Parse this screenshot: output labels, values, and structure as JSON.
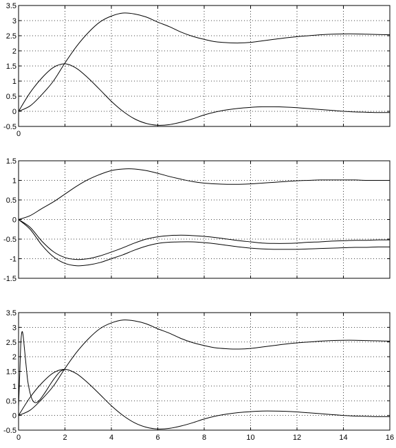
{
  "chart_data": [
    {
      "type": "line",
      "title": "",
      "xlabel": "",
      "ylabel": "",
      "xlim": [
        0,
        16
      ],
      "ylim": [
        -0.5,
        3.5
      ],
      "xticks": [
        0
      ],
      "xtick_labels": [
        "0"
      ],
      "yticks": [
        -0.5,
        0,
        0.5,
        1,
        1.5,
        2,
        2.5,
        3,
        3.5
      ],
      "ytick_labels": [
        "-0.5",
        "0",
        "0.5",
        "1",
        "1.5",
        "2",
        "2.5",
        "3",
        "3.5"
      ],
      "grid": true,
      "series": [
        {
          "x": [
            0,
            0.5,
            1,
            1.5,
            2,
            2.5,
            3,
            3.5,
            4,
            4.5,
            5,
            5.5,
            6,
            6.5,
            7,
            7.5,
            8,
            8.5,
            9,
            9.5,
            10,
            10.5,
            11,
            11.5,
            12,
            12.5,
            13,
            13.5,
            14,
            14.5,
            15,
            15.5,
            16
          ],
          "values": [
            0,
            0.18,
            0.55,
            1.0,
            1.6,
            2.15,
            2.6,
            2.95,
            3.15,
            3.25,
            3.22,
            3.12,
            2.95,
            2.8,
            2.62,
            2.48,
            2.38,
            2.3,
            2.27,
            2.26,
            2.28,
            2.33,
            2.38,
            2.43,
            2.47,
            2.5,
            2.53,
            2.55,
            2.56,
            2.56,
            2.55,
            2.54,
            2.53
          ]
        },
        {
          "x": [
            0,
            0.5,
            1,
            1.5,
            2,
            2.5,
            3,
            3.5,
            4,
            4.5,
            5,
            5.5,
            6,
            6.5,
            7,
            7.5,
            8,
            8.5,
            9,
            9.5,
            10,
            10.5,
            11,
            11.5,
            12,
            12.5,
            13,
            13.5,
            14,
            14.5,
            15,
            15.5,
            16
          ],
          "values": [
            0,
            0.62,
            1.1,
            1.45,
            1.57,
            1.42,
            1.1,
            0.72,
            0.33,
            0.0,
            -0.25,
            -0.4,
            -0.46,
            -0.44,
            -0.36,
            -0.25,
            -0.12,
            -0.02,
            0.05,
            0.1,
            0.13,
            0.15,
            0.15,
            0.14,
            0.12,
            0.09,
            0.06,
            0.03,
            0.0,
            -0.02,
            -0.03,
            -0.04,
            -0.04
          ]
        }
      ]
    },
    {
      "type": "line",
      "title": "",
      "xlabel": "",
      "ylabel": "",
      "xlim": [
        0,
        16
      ],
      "ylim": [
        -1.5,
        1.5
      ],
      "xticks": [],
      "xtick_labels": [],
      "yticks": [
        -1.5,
        -1,
        -0.5,
        0,
        0.5,
        1,
        1.5
      ],
      "ytick_labels": [
        "-1.5",
        "-1",
        "-0.5",
        "0",
        "0.5",
        "1",
        "1.5"
      ],
      "grid": true,
      "series": [
        {
          "x": [
            0,
            0.5,
            1,
            1.5,
            2,
            2.5,
            3,
            3.5,
            4,
            4.5,
            5,
            5.5,
            6,
            6.5,
            7,
            7.5,
            8,
            8.5,
            9,
            9.5,
            10,
            10.5,
            11,
            11.5,
            12,
            12.5,
            13,
            13.5,
            14,
            14.5,
            15,
            15.5,
            16
          ],
          "values": [
            0,
            0.1,
            0.28,
            0.45,
            0.65,
            0.85,
            1.02,
            1.15,
            1.25,
            1.29,
            1.29,
            1.25,
            1.18,
            1.1,
            1.03,
            0.97,
            0.93,
            0.91,
            0.9,
            0.9,
            0.91,
            0.93,
            0.95,
            0.97,
            0.99,
            1.0,
            1.01,
            1.01,
            1.01,
            1.01,
            1.0,
            1.0,
            1.0
          ]
        },
        {
          "x": [
            0,
            0.5,
            1,
            1.5,
            2,
            2.5,
            3,
            3.5,
            4,
            4.5,
            5,
            5.5,
            6,
            6.5,
            7,
            7.5,
            8,
            8.5,
            9,
            9.5,
            10,
            10.5,
            11,
            11.5,
            12,
            12.5,
            13,
            13.5,
            14,
            14.5,
            15,
            15.5,
            16
          ],
          "values": [
            0,
            -0.2,
            -0.55,
            -0.82,
            -0.97,
            -1.02,
            -1.0,
            -0.93,
            -0.83,
            -0.72,
            -0.6,
            -0.5,
            -0.44,
            -0.41,
            -0.4,
            -0.41,
            -0.43,
            -0.46,
            -0.5,
            -0.54,
            -0.57,
            -0.6,
            -0.61,
            -0.61,
            -0.6,
            -0.58,
            -0.57,
            -0.55,
            -0.54,
            -0.53,
            -0.53,
            -0.52,
            -0.52
          ]
        },
        {
          "x": [
            0,
            0.5,
            1,
            1.5,
            2,
            2.5,
            3,
            3.5,
            4,
            4.5,
            5,
            5.5,
            6,
            6.5,
            7,
            7.5,
            8,
            8.5,
            9,
            9.5,
            10,
            10.5,
            11,
            11.5,
            12,
            12.5,
            13,
            13.5,
            14,
            14.5,
            15,
            15.5,
            16
          ],
          "values": [
            0,
            -0.25,
            -0.65,
            -0.95,
            -1.12,
            -1.18,
            -1.16,
            -1.1,
            -1.0,
            -0.9,
            -0.78,
            -0.68,
            -0.61,
            -0.58,
            -0.57,
            -0.57,
            -0.59,
            -0.62,
            -0.66,
            -0.7,
            -0.73,
            -0.75,
            -0.76,
            -0.76,
            -0.76,
            -0.75,
            -0.74,
            -0.73,
            -0.72,
            -0.71,
            -0.71,
            -0.7,
            -0.7
          ]
        }
      ]
    },
    {
      "type": "line",
      "title": "",
      "xlabel": "",
      "ylabel": "",
      "xlim": [
        0,
        16
      ],
      "ylim": [
        -0.5,
        3.5
      ],
      "xticks": [
        0,
        2,
        4,
        6,
        8,
        10,
        12,
        14,
        16
      ],
      "xtick_labels": [
        "0",
        "2",
        "4",
        "6",
        "8",
        "10",
        "12",
        "14",
        "16"
      ],
      "yticks": [
        -0.5,
        0,
        0.5,
        1,
        1.5,
        2,
        2.5,
        3,
        3.5
      ],
      "ytick_labels": [
        "-0.5",
        "0",
        "0.5",
        "1",
        "1.5",
        "2",
        "2.5",
        "3",
        "3.5"
      ],
      "grid": true,
      "series": [
        {
          "x": [
            0,
            0.5,
            1,
            1.5,
            2,
            2.5,
            3,
            3.5,
            4,
            4.5,
            5,
            5.5,
            6,
            6.5,
            7,
            7.5,
            8,
            8.5,
            9,
            9.5,
            10,
            10.5,
            11,
            11.5,
            12,
            12.5,
            13,
            13.5,
            14,
            14.5,
            15,
            15.5,
            16
          ],
          "values": [
            0,
            0.18,
            0.55,
            1.0,
            1.6,
            2.15,
            2.6,
            2.95,
            3.15,
            3.25,
            3.22,
            3.12,
            2.95,
            2.8,
            2.62,
            2.48,
            2.38,
            2.3,
            2.27,
            2.26,
            2.28,
            2.33,
            2.38,
            2.43,
            2.47,
            2.5,
            2.53,
            2.55,
            2.56,
            2.56,
            2.55,
            2.54,
            2.53
          ]
        },
        {
          "x": [
            0,
            0.5,
            1,
            1.5,
            2,
            2.5,
            3,
            3.5,
            4,
            4.5,
            5,
            5.5,
            6,
            6.5,
            7,
            7.5,
            8,
            8.5,
            9,
            9.5,
            10,
            10.5,
            11,
            11.5,
            12,
            12.5,
            13,
            13.5,
            14,
            14.5,
            15,
            15.5,
            16
          ],
          "values": [
            0,
            0.62,
            1.1,
            1.45,
            1.57,
            1.42,
            1.1,
            0.72,
            0.33,
            0.0,
            -0.25,
            -0.4,
            -0.46,
            -0.44,
            -0.36,
            -0.25,
            -0.12,
            -0.02,
            0.05,
            0.1,
            0.13,
            0.15,
            0.15,
            0.14,
            0.12,
            0.09,
            0.06,
            0.03,
            0.0,
            -0.02,
            -0.03,
            -0.04,
            -0.04
          ]
        },
        {
          "x": [
            0,
            0.05,
            0.1,
            0.15,
            0.2,
            0.25,
            0.3,
            0.35,
            0.4,
            0.5,
            0.6,
            0.7,
            0.8,
            0.9,
            1.0,
            1.2,
            1.4,
            1.6,
            1.8,
            2.0
          ],
          "values": [
            0.3,
            1.4,
            2.5,
            2.85,
            2.7,
            2.3,
            1.9,
            1.5,
            1.15,
            0.75,
            0.52,
            0.44,
            0.45,
            0.52,
            0.62,
            0.85,
            1.1,
            1.32,
            1.5,
            1.57
          ]
        }
      ]
    }
  ]
}
